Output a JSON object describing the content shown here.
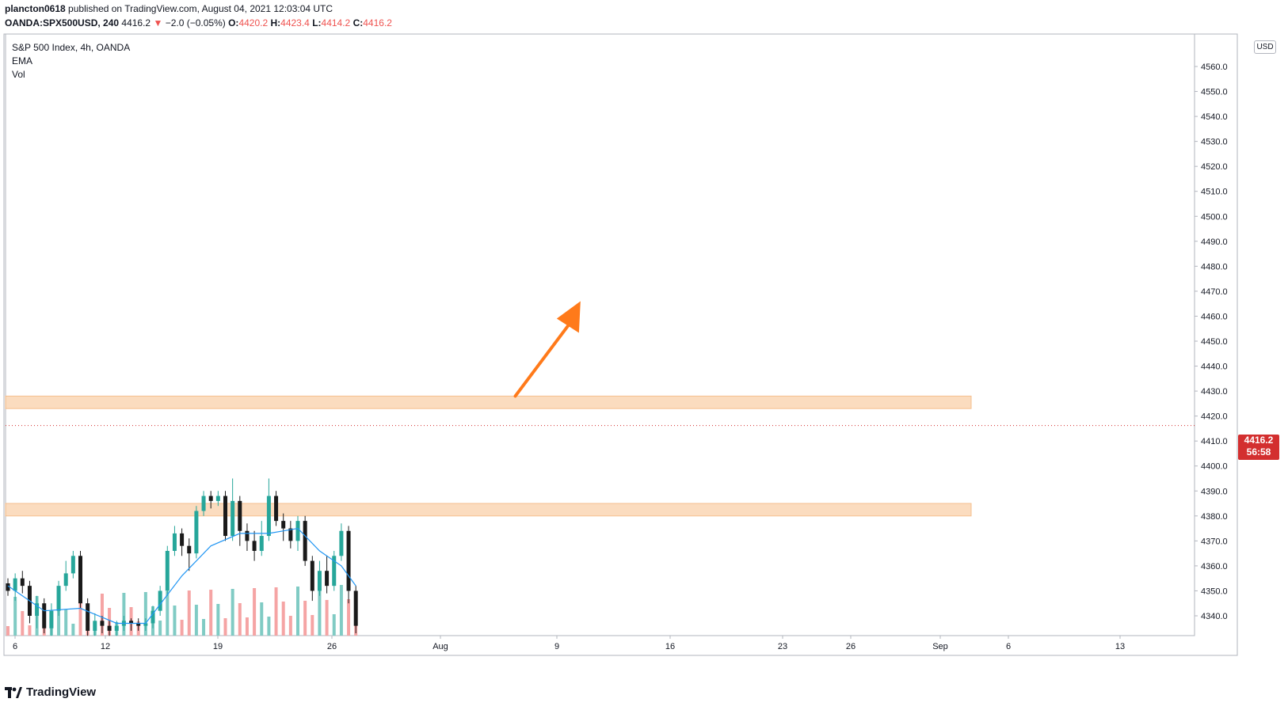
{
  "header": {
    "author": "plancton0618",
    "published_text": "published on TradingView.com, August 04, 2021 12:03:04 UTC",
    "symbol": "OANDA:SPX500USD, 240",
    "last_price": "4416.2",
    "change_arrow": "▼",
    "change": "−2.0 (−0.05%)",
    "open_label": "O:",
    "open": "4420.2",
    "high_label": "H:",
    "high": "4423.4",
    "low_label": "L:",
    "low": "4414.2",
    "close_label": "C:",
    "close": "4416.2"
  },
  "legend": {
    "title": "S&P 500 Index, 4h, OANDA",
    "ema": "EMA",
    "vol": "Vol"
  },
  "price_axis": {
    "currency": "USD",
    "current_price": "4416.2",
    "countdown": "56:58"
  },
  "brand": "TradingView",
  "colors": {
    "up_candle": "#26a69a",
    "down_candle": "#1a1a1a",
    "ema_line": "#2196f3",
    "zone_fill": "#fbd7b5",
    "arrow": "#ff7a1a",
    "vol_up": "#80cbc4",
    "vol_down": "#f5a4a4",
    "price_badge": "#d32f2f"
  },
  "chart_data": {
    "type": "candlestick",
    "interval": "4h",
    "ylim": [
      4334,
      4570
    ],
    "y_ticks": [
      4340.0,
      4350.0,
      4360.0,
      4370.0,
      4380.0,
      4390.0,
      4400.0,
      4410.0,
      4420.0,
      4430.0,
      4440.0,
      4450.0,
      4460.0,
      4470.0,
      4480.0,
      4490.0,
      4500.0,
      4510.0,
      4520.0,
      4530.0,
      4540.0,
      4550.0,
      4560.0
    ],
    "x_ticks": [
      "6",
      "12",
      "19",
      "26",
      "Aug",
      "9",
      "16",
      "23",
      "26",
      "Sep",
      "6",
      "13"
    ],
    "zones": [
      {
        "from": 4423,
        "to": 4428
      },
      {
        "from": 4380,
        "to": 4385
      }
    ],
    "arrow": {
      "from": [
        70,
        4428
      ],
      "to": [
        79,
        4466
      ]
    },
    "candles": [
      [
        0,
        4353.0,
        4350.0,
        4355.0,
        4348.0
      ],
      [
        1,
        4350.0,
        4355.0,
        4357.0,
        4346.0
      ],
      [
        2,
        4355.0,
        4352.0,
        4358.0,
        4349.0
      ],
      [
        3,
        4352.0,
        4340.0,
        4354.0,
        4337.0
      ],
      [
        4,
        4340.0,
        4345.0,
        4348.0,
        4335.0
      ],
      [
        5,
        4345.0,
        4335.0,
        4347.0,
        4333.0
      ],
      [
        6,
        4335.0,
        4342.0,
        4345.0,
        4332.0
      ],
      [
        7,
        4342.0,
        4352.0,
        4354.0,
        4340.0
      ],
      [
        8,
        4352.0,
        4357.0,
        4362.0,
        4350.0
      ],
      [
        9,
        4357.0,
        4364.0,
        4366.0,
        4355.0
      ],
      [
        10,
        4364.0,
        4345.0,
        4366.0,
        4343.0
      ],
      [
        11,
        4345.0,
        4334.0,
        4347.0,
        4332.0
      ],
      [
        12,
        4334.0,
        4338.0,
        4341.0,
        4332.0
      ],
      [
        13,
        4338.0,
        4336.0,
        4340.0,
        4333.0
      ],
      [
        14,
        4336.0,
        4334.0,
        4338.0,
        4332.0
      ],
      [
        15,
        4334.0,
        4336.0,
        4338.0,
        4332.0
      ],
      [
        16,
        4336.0,
        4338.0,
        4340.0,
        4334.0
      ],
      [
        17,
        4338.0,
        4337.0,
        4339.0,
        4334.0
      ],
      [
        18,
        4337.0,
        4336.0,
        4339.0,
        4334.0
      ],
      [
        19,
        4336.0,
        4337.0,
        4339.0,
        4334.0
      ],
      [
        20,
        4337.0,
        4342.0,
        4344.0,
        4335.0
      ],
      [
        21,
        4342.0,
        4350.0,
        4352.0,
        4340.0
      ],
      [
        22,
        4350.0,
        4366.0,
        4368.0,
        4348.0
      ],
      [
        23,
        4366.0,
        4373.0,
        4376.0,
        4364.0
      ],
      [
        24,
        4373.0,
        4368.0,
        4375.0,
        4364.0
      ],
      [
        25,
        4368.0,
        4365.0,
        4371.0,
        4358.0
      ],
      [
        26,
        4365.0,
        4382.0,
        4384.0,
        4363.0
      ],
      [
        27,
        4382.0,
        4388.0,
        4390.0,
        4380.0
      ],
      [
        28,
        4388.0,
        4386.0,
        4390.0,
        4383.0
      ],
      [
        29,
        4386.0,
        4388.0,
        4390.0,
        4384.0
      ],
      [
        30,
        4388.0,
        4372.0,
        4390.0,
        4370.0
      ],
      [
        31,
        4372.0,
        4386.0,
        4395.0,
        4370.0
      ],
      [
        32,
        4386.0,
        4374.0,
        4388.0,
        4368.0
      ],
      [
        33,
        4374.0,
        4370.0,
        4377.0,
        4366.0
      ],
      [
        34,
        4370.0,
        4366.0,
        4374.0,
        4362.0
      ],
      [
        35,
        4366.0,
        4372.0,
        4378.0,
        4364.0
      ],
      [
        36,
        4372.0,
        4388.0,
        4395.0,
        4370.0
      ],
      [
        37,
        4388.0,
        4378.0,
        4390.0,
        4376.0
      ],
      [
        38,
        4378.0,
        4375.0,
        4381.0,
        4370.0
      ],
      [
        39,
        4375.0,
        4370.0,
        4378.0,
        4367.0
      ],
      [
        40,
        4370.0,
        4378.0,
        4380.0,
        4366.0
      ],
      [
        41,
        4378.0,
        4362.0,
        4380.0,
        4360.0
      ],
      [
        42,
        4362.0,
        4350.0,
        4364.0,
        4346.0
      ],
      [
        43,
        4350.0,
        4358.0,
        4362.0,
        4348.0
      ],
      [
        44,
        4358.0,
        4352.0,
        4364.0,
        4349.0
      ],
      [
        45,
        4352.0,
        4364.0,
        4366.0,
        4350.0
      ],
      [
        46,
        4364.0,
        4374.0,
        4377.0,
        4362.0
      ],
      [
        47,
        4374.0,
        4350.0,
        4376.0,
        4345.0
      ],
      [
        48,
        4350.0,
        4336.0,
        4352.0,
        4333.0
      ]
    ],
    "ema": [
      [
        0,
        4352
      ],
      [
        5,
        4342
      ],
      [
        10,
        4343
      ],
      [
        15,
        4337
      ],
      [
        19,
        4337
      ],
      [
        24,
        4356
      ],
      [
        28,
        4368
      ],
      [
        32,
        4373
      ],
      [
        36,
        4373
      ],
      [
        40,
        4375
      ],
      [
        43,
        4366
      ],
      [
        46,
        4360
      ],
      [
        48,
        4352
      ]
    ]
  }
}
